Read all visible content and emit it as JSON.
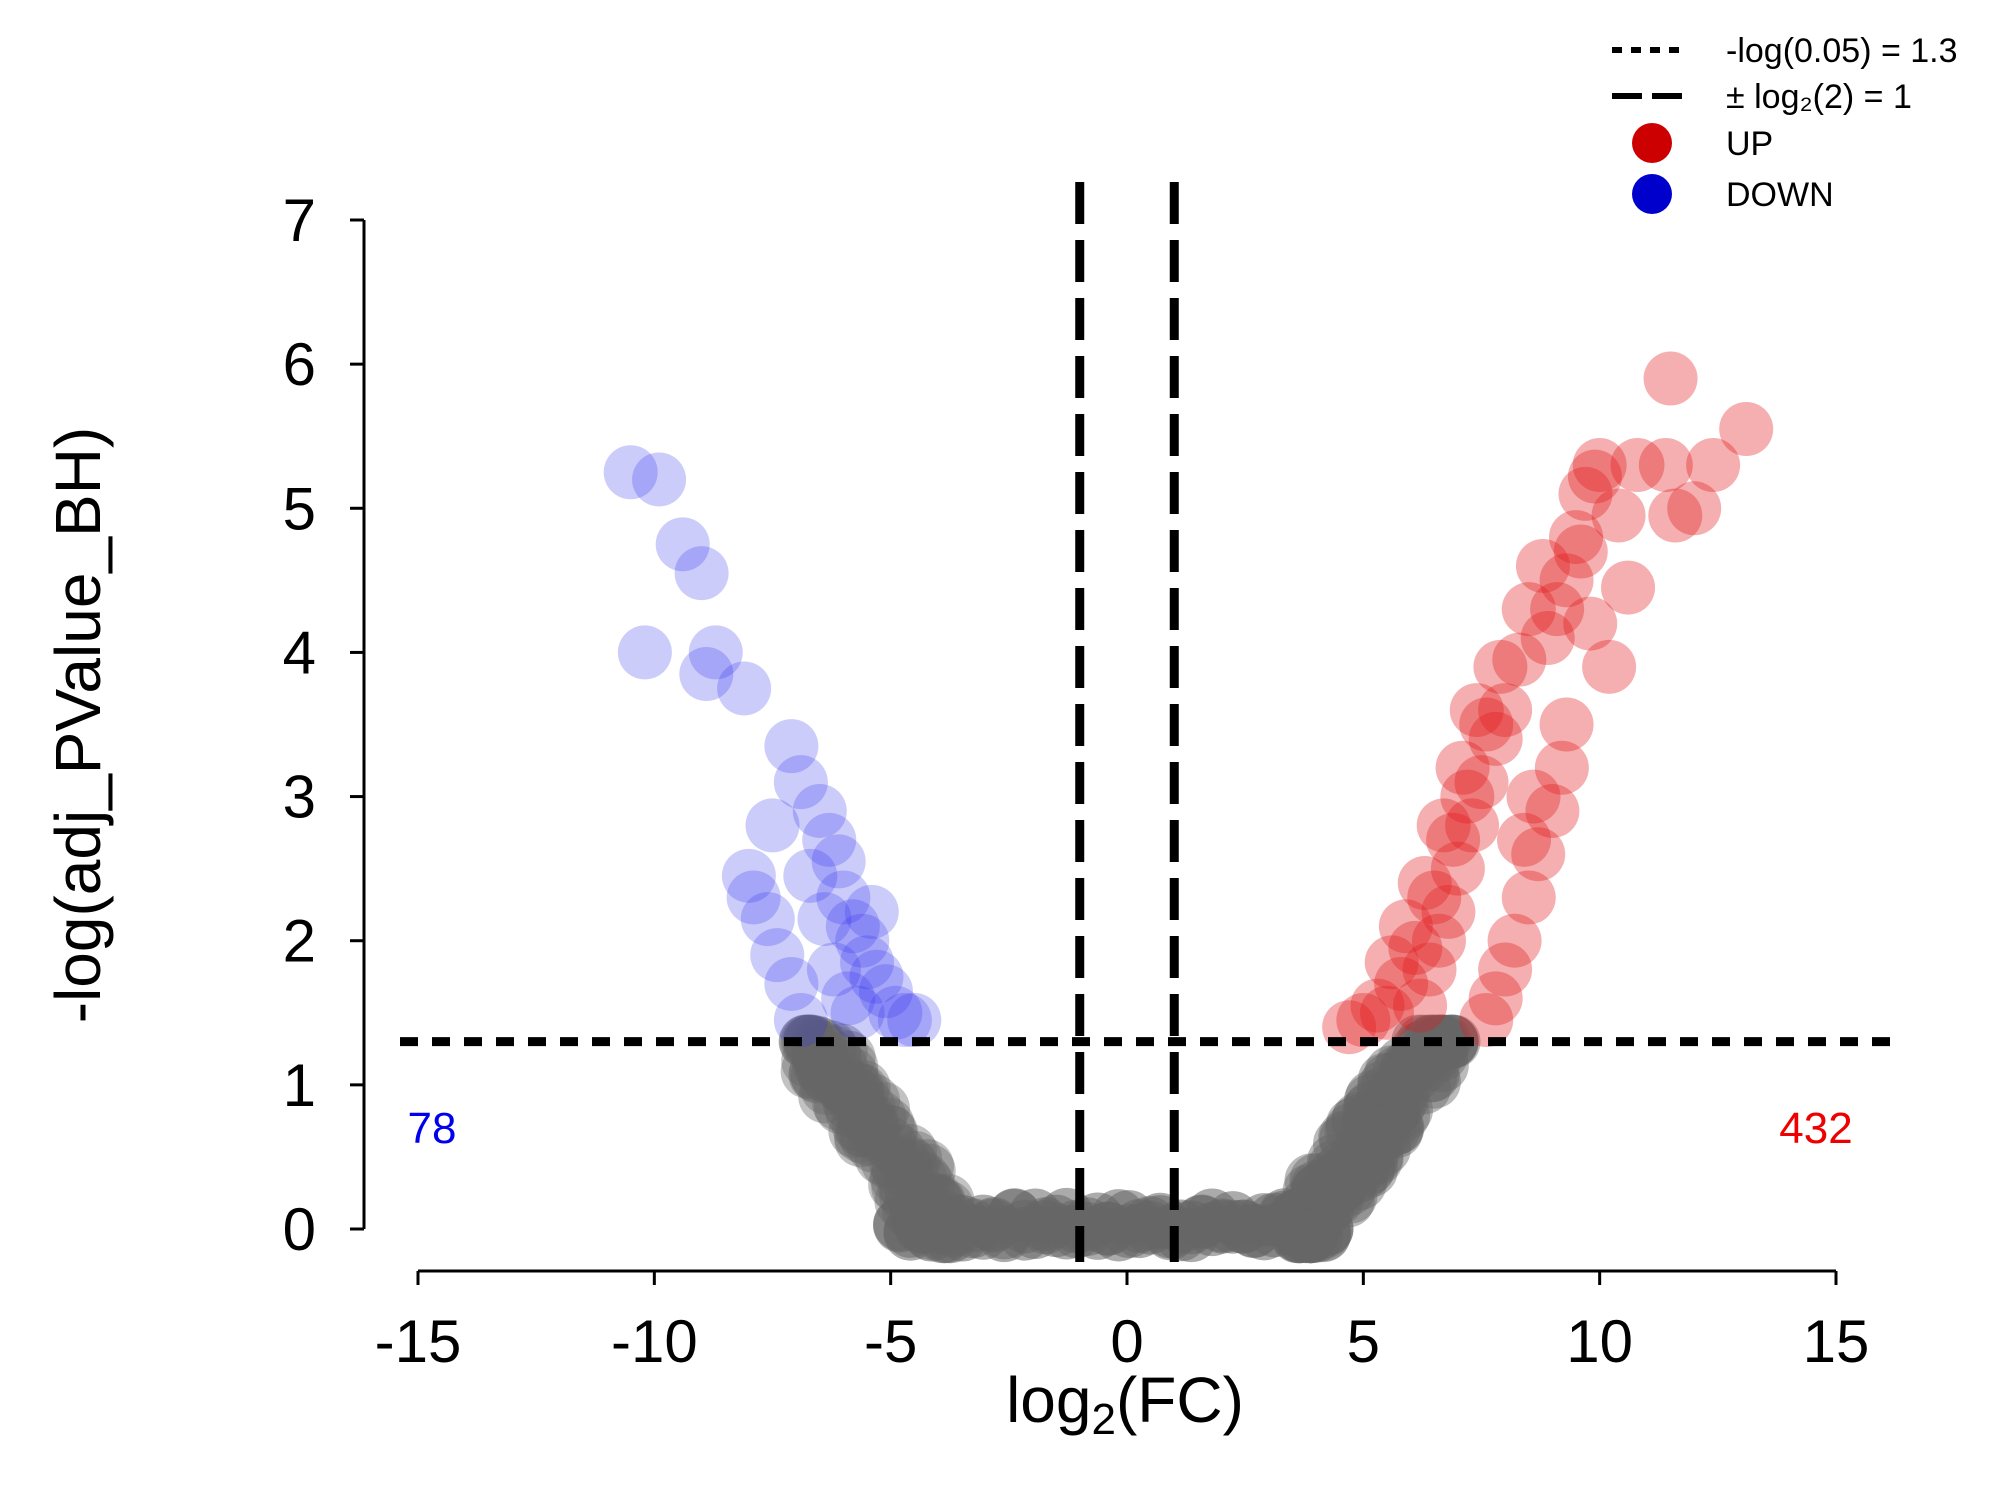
{
  "chart_data": {
    "type": "scatter",
    "title": "",
    "xlabel": "log2(FC)",
    "xlabel_base": "log",
    "xlabel_sub": "2",
    "xlabel_rest": "(FC)",
    "ylabel": "-log(adj_PValue_BH)",
    "xlim": [
      -15,
      15
    ],
    "ylim": [
      0,
      7
    ],
    "x_ticks": [
      -15,
      -10,
      -5,
      0,
      5,
      10,
      15
    ],
    "x_tick_labels": [
      "-15",
      "-10",
      "-5",
      "0",
      "5",
      "10",
      "15"
    ],
    "y_ticks": [
      0,
      1,
      2,
      3,
      4,
      5,
      6,
      7
    ],
    "y_tick_labels": [
      "0",
      "1",
      "2",
      "3",
      "4",
      "5",
      "6",
      "7"
    ],
    "grid": false,
    "legend_position": "top-right",
    "legend": [
      {
        "label": "-log(0.05) = 1.3",
        "kind": "dotted-line"
      },
      {
        "label": "± log₂(2) = 1",
        "kind": "dashed-line"
      },
      {
        "label": "UP",
        "kind": "point",
        "color": "#cc0000"
      },
      {
        "label": "DOWN",
        "kind": "point",
        "color": "#0000cc"
      }
    ],
    "thresholds": {
      "pvalue_line_y": 1.3,
      "fc_lines_x": [
        -1,
        1
      ]
    },
    "counts": {
      "down": "78",
      "up": "432"
    },
    "colors": {
      "up": "#e31a1c",
      "down": "#3333ee",
      "ns": "#666666",
      "down_count": "#0000ee",
      "up_count": "#ee0000"
    },
    "series": [
      {
        "name": "UP",
        "points": [
          [
            11.5,
            5.9
          ],
          [
            13.1,
            5.55
          ],
          [
            12.4,
            5.3
          ],
          [
            11.4,
            5.3
          ],
          [
            11.6,
            4.95
          ],
          [
            10.4,
            4.95
          ],
          [
            10.0,
            5.3
          ],
          [
            9.9,
            5.22
          ],
          [
            9.7,
            5.1
          ],
          [
            9.5,
            4.8
          ],
          [
            9.3,
            4.5
          ],
          [
            9.1,
            4.3
          ],
          [
            10.6,
            4.45
          ],
          [
            10.2,
            3.9
          ],
          [
            9.8,
            4.2
          ],
          [
            9.2,
            3.2
          ],
          [
            9.3,
            3.5
          ],
          [
            9.0,
            2.9
          ],
          [
            8.7,
            2.6
          ],
          [
            8.5,
            2.3
          ],
          [
            8.2,
            2.0
          ],
          [
            8.0,
            1.8
          ],
          [
            7.8,
            1.6
          ],
          [
            7.6,
            1.45
          ],
          [
            8.8,
            4.6
          ],
          [
            8.5,
            4.3
          ],
          [
            8.3,
            3.95
          ],
          [
            8.0,
            3.6
          ],
          [
            7.8,
            3.4
          ],
          [
            7.5,
            3.1
          ],
          [
            7.3,
            2.8
          ],
          [
            7.0,
            2.5
          ],
          [
            6.8,
            2.2
          ],
          [
            6.6,
            2.0
          ],
          [
            6.4,
            1.8
          ],
          [
            6.2,
            1.55
          ],
          [
            7.9,
            3.9
          ],
          [
            7.6,
            3.5
          ],
          [
            7.2,
            3.0
          ],
          [
            6.9,
            2.7
          ],
          [
            6.5,
            2.3
          ],
          [
            6.1,
            1.95
          ],
          [
            5.8,
            1.7
          ],
          [
            5.5,
            1.5
          ],
          [
            5.9,
            2.1
          ],
          [
            5.6,
            1.85
          ],
          [
            6.3,
            2.4
          ],
          [
            5.3,
            1.55
          ],
          [
            7.1,
            3.2
          ],
          [
            6.7,
            2.8
          ],
          [
            7.4,
            3.6
          ],
          [
            5.0,
            1.45
          ],
          [
            4.7,
            1.4
          ],
          [
            8.6,
            3.0
          ],
          [
            8.4,
            2.7
          ],
          [
            8.9,
            4.1
          ],
          [
            9.6,
            4.7
          ],
          [
            10.8,
            5.3
          ],
          [
            12.0,
            5.0
          ]
        ]
      },
      {
        "name": "DOWN",
        "points": [
          [
            -10.5,
            5.25
          ],
          [
            -9.9,
            5.2
          ],
          [
            -9.4,
            4.75
          ],
          [
            -9.0,
            4.55
          ],
          [
            -10.2,
            4.0
          ],
          [
            -8.7,
            4.0
          ],
          [
            -8.9,
            3.85
          ],
          [
            -8.1,
            3.75
          ],
          [
            -7.1,
            3.35
          ],
          [
            -6.9,
            3.1
          ],
          [
            -7.5,
            2.8
          ],
          [
            -8.0,
            2.45
          ],
          [
            -7.9,
            2.3
          ],
          [
            -7.6,
            2.15
          ],
          [
            -7.4,
            1.9
          ],
          [
            -7.1,
            1.7
          ],
          [
            -6.9,
            1.45
          ],
          [
            -6.5,
            2.9
          ],
          [
            -6.3,
            2.7
          ],
          [
            -6.1,
            2.55
          ],
          [
            -6.7,
            2.45
          ],
          [
            -6.4,
            2.15
          ],
          [
            -6.0,
            2.3
          ],
          [
            -5.8,
            2.1
          ],
          [
            -5.6,
            2.0
          ],
          [
            -5.5,
            1.85
          ],
          [
            -5.3,
            1.75
          ],
          [
            -5.1,
            1.65
          ],
          [
            -4.9,
            1.5
          ],
          [
            -4.7,
            1.45
          ],
          [
            -6.2,
            1.8
          ],
          [
            -5.9,
            1.6
          ],
          [
            -5.4,
            2.2
          ],
          [
            -5.7,
            1.5
          ],
          [
            -4.5,
            1.45
          ]
        ]
      }
    ],
    "ns_envelope": {
      "note": "dense non-significant cloud forming a V shape between the threshold lines",
      "left_x_range": [
        -6.8,
        -3.8
      ],
      "right_x_range": [
        3.8,
        7.0
      ],
      "center_x_range": [
        -4.8,
        4.3
      ],
      "y_max": 1.3
    }
  }
}
